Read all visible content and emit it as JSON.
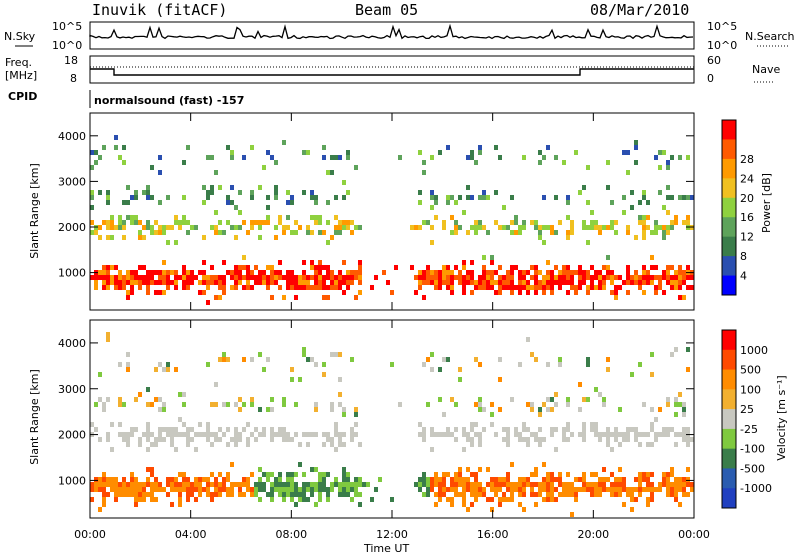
{
  "header": {
    "station": "Inuvik (fitACF)",
    "beam": "Beam 05",
    "date": "08/Mar/2010"
  },
  "top_panel": {
    "left_label": "N.Sky",
    "right_label": "N.Search",
    "left_ticks": [
      "10^5",
      "10^0"
    ],
    "right_ticks": [
      "10^5",
      "10^0"
    ]
  },
  "freq_panel": {
    "left_label_1": "Freq.",
    "left_label_2": "[MHz]",
    "right_label": "Nave",
    "left_ticks": [
      "18",
      "8"
    ],
    "right_ticks": [
      "60",
      "0"
    ],
    "cpid_label": "CPID",
    "cpid_text": "normalsound (fast) -157"
  },
  "colors": {
    "power": [
      "#0000ff",
      "#2a4fb0",
      "#3a7d4a",
      "#5ea35b",
      "#8fd13f",
      "#f0c020",
      "#ff9a00",
      "#ff5a00",
      "#ff0000"
    ],
    "velocity": [
      "#2040c0",
      "#2a5cb0",
      "#3a7d4a",
      "#7fc93f",
      "#c8c8c0",
      "#f2b030",
      "#ff8c00",
      "#ff4a00",
      "#ff0000"
    ]
  },
  "chart_data": [
    {
      "type": "heatmap",
      "title": "",
      "xlabel": "Time UT",
      "ylabel": "Slant Range [km]",
      "xlim": [
        "00:00",
        "24:00"
      ],
      "ylim": [
        180,
        4500
      ],
      "x_ticks": [
        "00:00",
        "04:00",
        "08:00",
        "12:00",
        "16:00",
        "20:00",
        "00:00"
      ],
      "y_ticks": [
        1000,
        2000,
        3000,
        4000
      ],
      "colorbar": {
        "label": "Power [dB]",
        "ticks": [
          4,
          8,
          12,
          16,
          20,
          24,
          28
        ]
      }
    },
    {
      "type": "heatmap",
      "title": "",
      "xlabel": "Time UT",
      "ylabel": "Slant Range [km]",
      "xlim": [
        "00:00",
        "24:00"
      ],
      "ylim": [
        180,
        4500
      ],
      "x_ticks": [
        "00:00",
        "04:00",
        "08:00",
        "12:00",
        "16:00",
        "20:00",
        "00:00"
      ],
      "y_ticks": [
        1000,
        2000,
        3000,
        4000
      ],
      "colorbar": {
        "label": "Velocity [m s⁻¹]",
        "ticks": [
          1000,
          500,
          100,
          25,
          -25,
          -100,
          -500,
          -1000
        ]
      }
    }
  ]
}
